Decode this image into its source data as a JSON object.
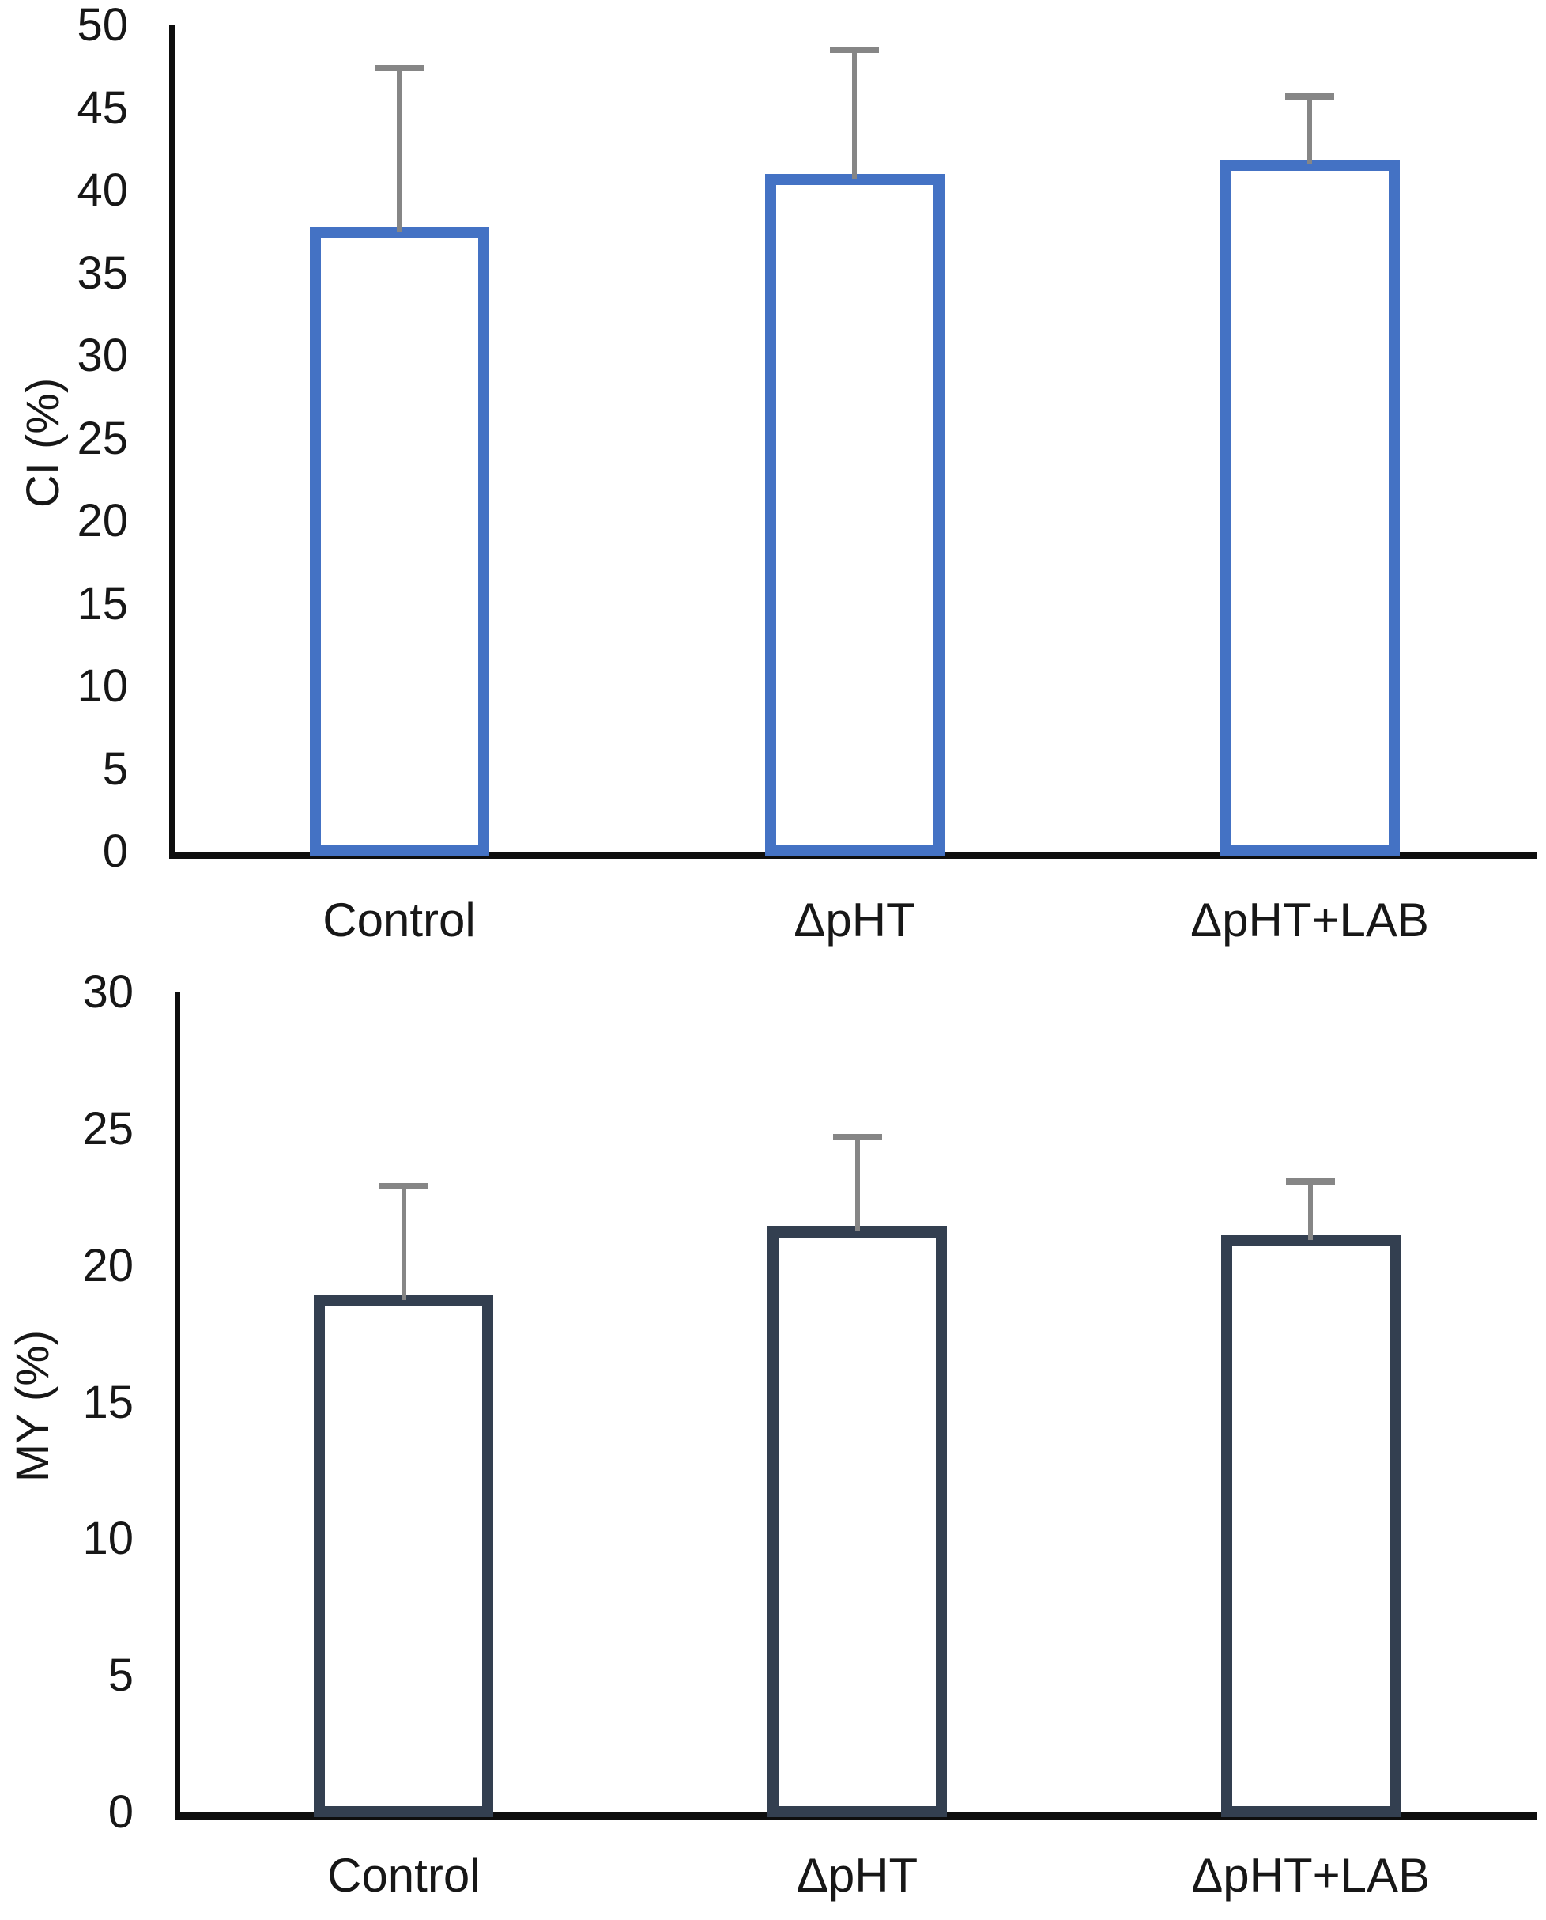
{
  "figure": {
    "background": "#ffffff",
    "panels": [
      "CI chart",
      "MY chart"
    ]
  },
  "chart_data": [
    {
      "type": "bar",
      "title": "",
      "xlabel": "",
      "ylabel": "CI (%)",
      "categories": [
        "Control",
        "ΔpHT",
        "ΔpHT+LAB"
      ],
      "values": [
        37.4,
        40.6,
        41.5
      ],
      "error_plus": [
        10.0,
        7.9,
        4.2
      ],
      "ylim": [
        0,
        50
      ],
      "ytick_step": 5,
      "yticks": [
        0,
        5,
        10,
        15,
        20,
        25,
        30,
        35,
        40,
        45,
        50
      ],
      "grid": false,
      "legend": false,
      "bar_fill": "#ffffff",
      "bar_border": "#4472C4",
      "error_color": "#868686",
      "axis_color": "#0e0e0e"
    },
    {
      "type": "bar",
      "title": "",
      "xlabel": "",
      "ylabel": "MY (%)",
      "categories": [
        "Control",
        "ΔpHT",
        "ΔpHT+LAB"
      ],
      "values": [
        18.7,
        21.2,
        20.9
      ],
      "error_plus": [
        4.2,
        3.5,
        2.2
      ],
      "ylim": [
        0,
        30
      ],
      "ytick_step": 5,
      "yticks": [
        0,
        5,
        10,
        15,
        20,
        25,
        30
      ],
      "grid": false,
      "legend": false,
      "bar_fill": "#ffffff",
      "bar_border": "#333F50",
      "error_color": "#868686",
      "axis_color": "#0e0e0e"
    }
  ]
}
